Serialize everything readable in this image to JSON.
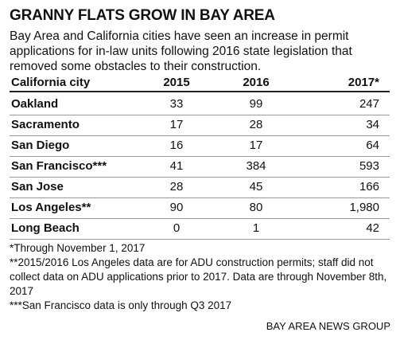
{
  "header": {
    "title": "GRANNY FLATS GROW IN BAY AREA",
    "subtitle": "Bay Area and California cities have seen an increase in permit applications for in-law units following 2016 state legislation that removed some obstacles to their construction."
  },
  "table": {
    "columns": [
      "California city",
      "2015",
      "2016",
      "2017*"
    ],
    "rows": [
      [
        "Oakland",
        "33",
        "99",
        "247"
      ],
      [
        "Sacramento",
        "17",
        "28",
        "34"
      ],
      [
        "San Diego",
        "16",
        "17",
        "64"
      ],
      [
        "San Francisco***",
        "41",
        "384",
        "593"
      ],
      [
        "San Jose",
        "28",
        "45",
        "166"
      ],
      [
        "Los Angeles**",
        "90",
        "80",
        "1,980"
      ],
      [
        "Long Beach",
        "0",
        "1",
        "42"
      ]
    ]
  },
  "footnotes": [
    "*Through November 1, 2017",
    "**2015/2016 Los Angeles data are for ADU construction permits; staff did not collect data on ADU applications prior to 2017. Data are through November 8th, 2017",
    "***San Francisco data is only through Q3 2017"
  ],
  "credit": "BAY AREA NEWS GROUP"
}
